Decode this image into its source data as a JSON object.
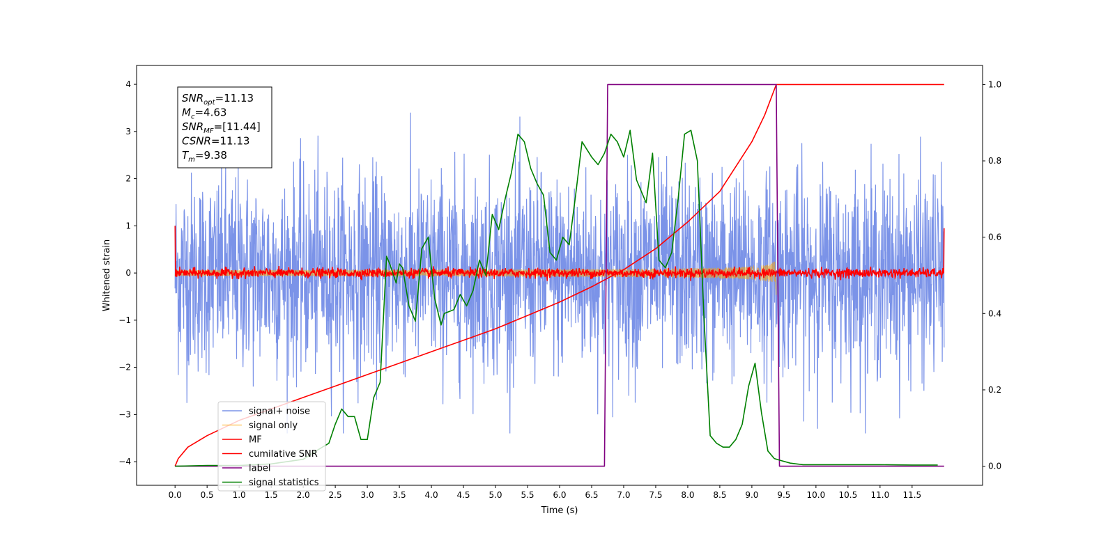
{
  "chart_data": {
    "type": "line",
    "xlabel": "Time (s)",
    "ylabel": "Whitened strain",
    "xlim": [
      -0.6,
      12.6
    ],
    "ylim": [
      -4.5,
      4.4
    ],
    "y2lim": [
      -0.05,
      1.05
    ],
    "x_ticks": [
      "0.0",
      "0.5",
      "1.0",
      "1.5",
      "2.0",
      "2.5",
      "3.0",
      "3.5",
      "4.0",
      "4.5",
      "5.0",
      "5.5",
      "6.0",
      "6.5",
      "7.0",
      "7.5",
      "8.0",
      "8.5",
      "9.0",
      "9.5",
      "10.0",
      "10.5",
      "11.0",
      "11.5"
    ],
    "y_ticks": [
      "4",
      "3",
      "2",
      "1",
      "0",
      "−1",
      "−2",
      "−3",
      "−4"
    ],
    "y2_ticks": [
      "1.0",
      "0.8",
      "0.6",
      "0.4",
      "0.2",
      "0.0"
    ],
    "grid": false,
    "legend_placement": "lower-left",
    "info_box": {
      "snr_opt": "11.13",
      "mc": "4.63",
      "snr_mf": "[11.44]",
      "csnr": "11.13",
      "tm": "9.38"
    },
    "series": [
      {
        "name": "signal+ noise",
        "axis": "left",
        "color": "#7b93e8",
        "kind": "noise",
        "x_range": [
          0,
          12
        ],
        "amplitude_envelope": 3.3
      },
      {
        "name": "signal only",
        "axis": "left",
        "color": "#ffa500",
        "kind": "chirp",
        "x_range": [
          0,
          9.38
        ],
        "final_amplitude": 1.0
      },
      {
        "name": "MF",
        "axis": "left",
        "color": "#ff0000",
        "kind": "noise",
        "x_range": [
          0,
          12
        ],
        "amplitude_envelope": 0.15
      },
      {
        "name": "cumilative SNR",
        "axis": "right",
        "color": "#ff0000",
        "x": [
          0,
          0.05,
          0.2,
          0.5,
          1,
          1.5,
          2,
          2.5,
          3,
          3.5,
          4,
          4.5,
          5,
          5.5,
          6,
          6.5,
          7,
          7.5,
          8,
          8.5,
          9,
          9.2,
          9.38,
          9.39,
          12
        ],
        "y": [
          0,
          0.02,
          0.05,
          0.08,
          0.12,
          0.15,
          0.18,
          0.21,
          0.24,
          0.27,
          0.3,
          0.33,
          0.36,
          0.395,
          0.43,
          0.47,
          0.515,
          0.57,
          0.64,
          0.72,
          0.85,
          0.92,
          1.0,
          1.0,
          1.0
        ]
      },
      {
        "name": "label",
        "axis": "right",
        "color": "#800080",
        "x": [
          0,
          6.7,
          6.75,
          9.38,
          9.43,
          12
        ],
        "y": [
          0,
          0,
          1,
          1,
          0,
          0
        ]
      },
      {
        "name": "signal statistics",
        "axis": "right",
        "color": "#008000",
        "x": [
          0,
          0.5,
          1,
          1.5,
          2,
          2.2,
          2.4,
          2.5,
          2.6,
          2.7,
          2.8,
          2.9,
          3.0,
          3.1,
          3.2,
          3.3,
          3.35,
          3.45,
          3.5,
          3.55,
          3.65,
          3.75,
          3.85,
          3.95,
          4.05,
          4.15,
          4.2,
          4.35,
          4.45,
          4.55,
          4.65,
          4.75,
          4.85,
          4.95,
          5.05,
          5.15,
          5.25,
          5.35,
          5.45,
          5.55,
          5.65,
          5.75,
          5.85,
          5.95,
          6.05,
          6.15,
          6.25,
          6.35,
          6.5,
          6.6,
          6.7,
          6.8,
          6.9,
          7.0,
          7.1,
          7.2,
          7.35,
          7.45,
          7.55,
          7.65,
          7.75,
          7.85,
          7.95,
          8.05,
          8.15,
          8.25,
          8.35,
          8.45,
          8.55,
          8.65,
          8.75,
          8.85,
          8.95,
          9.05,
          9.15,
          9.25,
          9.35,
          9.45,
          9.6,
          9.8,
          10,
          10.5,
          11,
          11.5,
          11.9
        ],
        "y": [
          0.0,
          0.002,
          0.002,
          0.006,
          0.018,
          0.04,
          0.06,
          0.11,
          0.15,
          0.13,
          0.13,
          0.07,
          0.07,
          0.18,
          0.22,
          0.55,
          0.53,
          0.48,
          0.53,
          0.52,
          0.42,
          0.38,
          0.57,
          0.6,
          0.44,
          0.37,
          0.4,
          0.41,
          0.45,
          0.42,
          0.46,
          0.54,
          0.5,
          0.66,
          0.62,
          0.7,
          0.77,
          0.87,
          0.85,
          0.78,
          0.74,
          0.71,
          0.56,
          0.54,
          0.6,
          0.58,
          0.71,
          0.85,
          0.81,
          0.79,
          0.82,
          0.87,
          0.85,
          0.81,
          0.88,
          0.75,
          0.69,
          0.82,
          0.54,
          0.52,
          0.56,
          0.7,
          0.87,
          0.88,
          0.8,
          0.4,
          0.08,
          0.06,
          0.05,
          0.05,
          0.07,
          0.11,
          0.21,
          0.27,
          0.14,
          0.04,
          0.02,
          0.015,
          0.008,
          0.004,
          0.004,
          0.004,
          0.004,
          0.003,
          0.003
        ]
      }
    ]
  }
}
